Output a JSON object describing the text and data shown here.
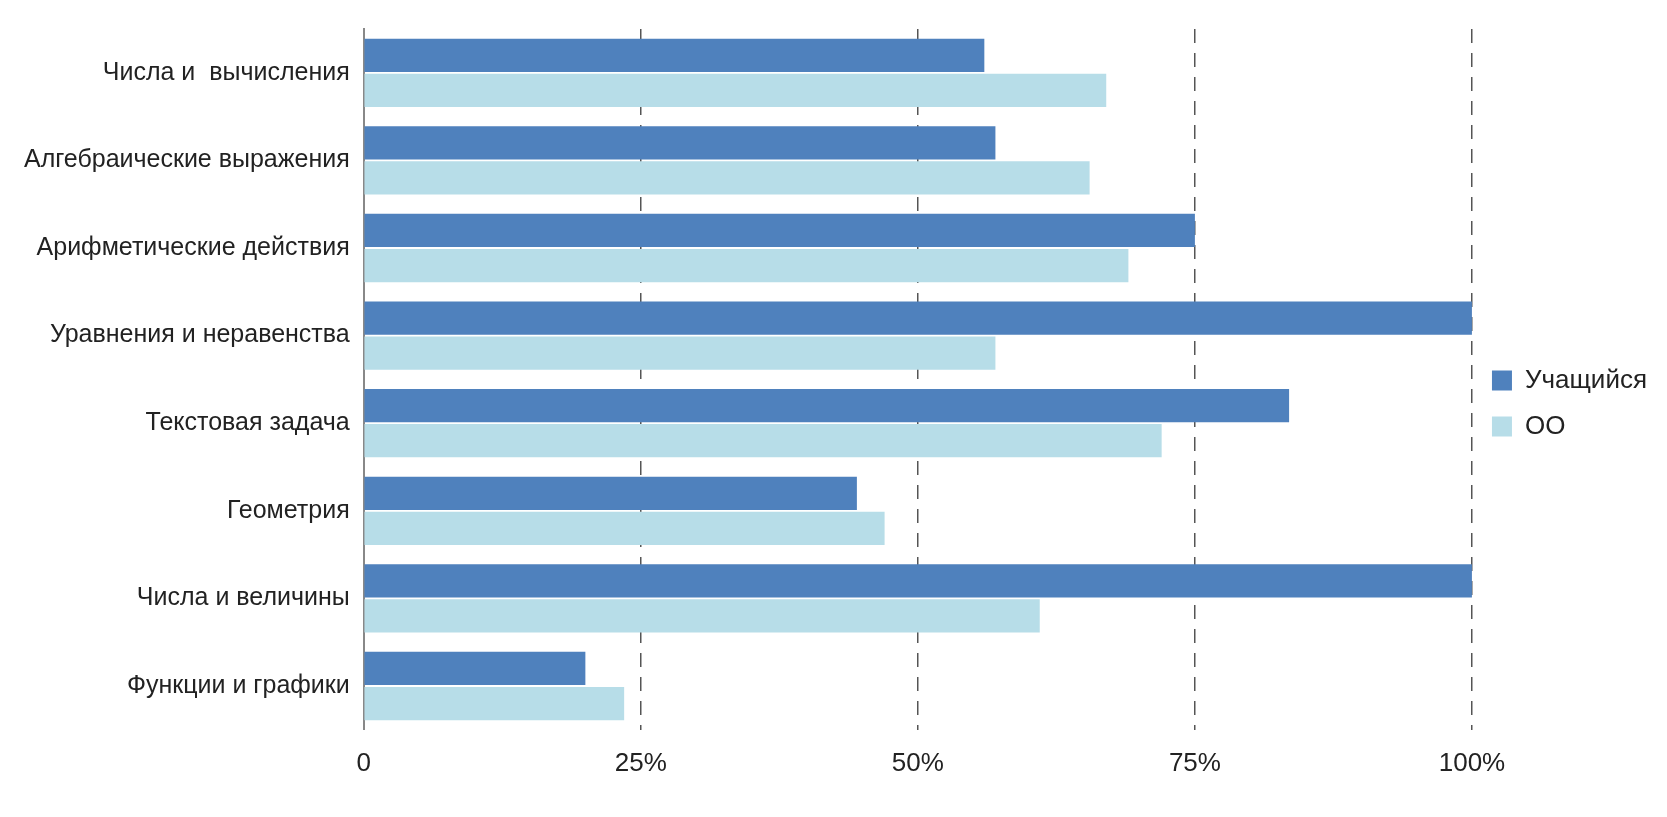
{
  "chart_data": {
    "type": "bar",
    "orientation": "horizontal",
    "categories": [
      "Числа и  вычисления",
      "Алгебраические выражения",
      "Арифметические действия",
      "Уравнения и неравенства",
      "Текстовая задача",
      "Геометрия",
      "Числа и величины",
      "Функции и графики"
    ],
    "series": [
      {
        "name": "Учащийся",
        "color": "#4f81bd",
        "values": [
          56,
          57,
          75,
          100,
          83.5,
          44.5,
          100,
          20
        ]
      },
      {
        "name": "ОО",
        "color": "#b7dde8",
        "values": [
          67,
          65.5,
          69,
          57,
          72,
          47,
          61,
          23.5
        ]
      }
    ],
    "xlim": [
      0,
      100
    ],
    "xticks": [
      0,
      {
        "value": 25,
        "label": "25%"
      },
      {
        "value": 50,
        "label": "50%"
      },
      {
        "value": 75,
        "label": "75%"
      },
      {
        "value": 100,
        "label": "100%"
      }
    ],
    "grid": "x",
    "legend": "right"
  }
}
